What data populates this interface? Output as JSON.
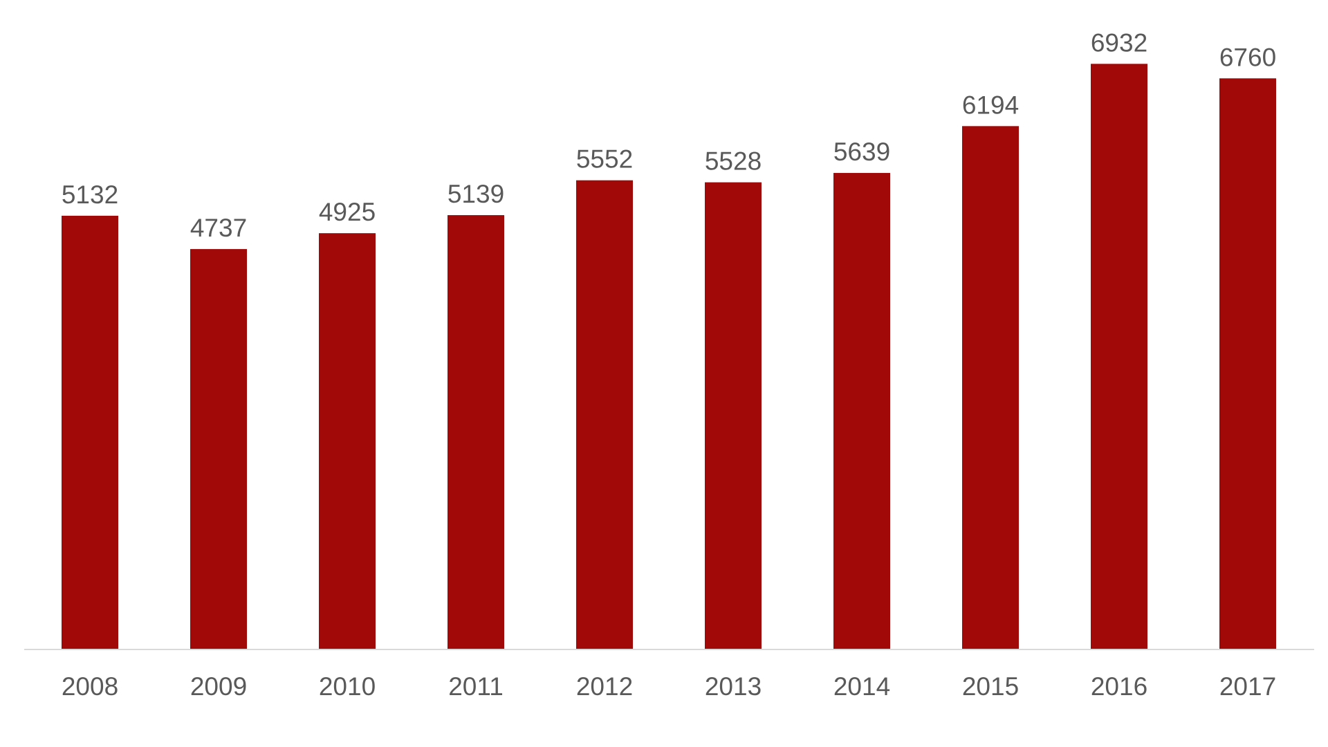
{
  "chart_data": {
    "type": "bar",
    "title": "",
    "xlabel": "",
    "ylabel": "",
    "categories": [
      "2008",
      "2009",
      "2010",
      "2011",
      "2012",
      "2013",
      "2014",
      "2015",
      "2016",
      "2017"
    ],
    "values": [
      5132,
      4737,
      4925,
      5139,
      5552,
      5528,
      5639,
      6194,
      6932,
      6760
    ],
    "ylim": [
      0,
      7000
    ],
    "grid": false,
    "legend": "none",
    "show_data_labels": true,
    "bar_color": "#A10909",
    "axis_line_color": "#D9D9D9",
    "label_color": "#595959"
  }
}
